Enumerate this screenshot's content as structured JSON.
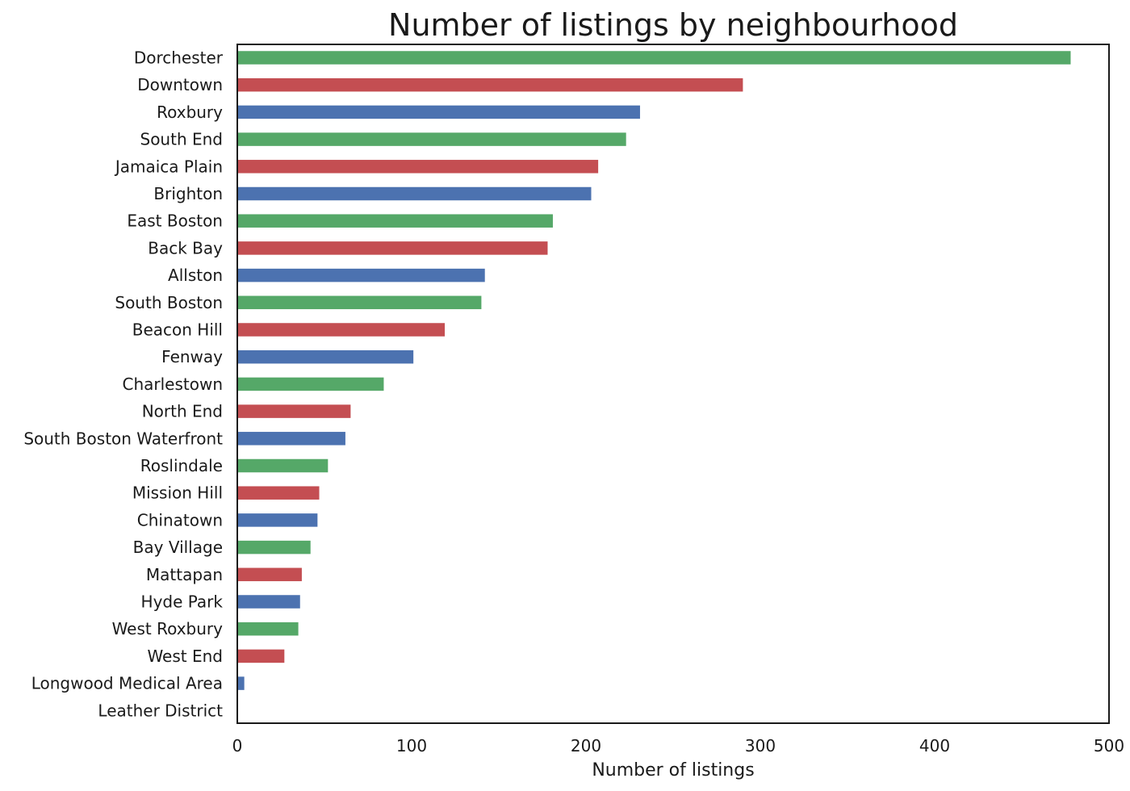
{
  "chart_data": {
    "type": "bar",
    "orientation": "horizontal",
    "title": "Number of listings by neighbourhood",
    "xlabel": "Number of listings",
    "ylabel": "",
    "xlim": [
      0,
      500
    ],
    "xticks": [
      0,
      100,
      200,
      300,
      400,
      500
    ],
    "xtick_labels": [
      "0",
      "100",
      "200",
      "300",
      "400",
      "500"
    ],
    "grid": false,
    "legend": "none",
    "bar_color_cycle": [
      "#55a868",
      "#c44e52",
      "#4c72b0"
    ],
    "categories": [
      "Dorchester",
      "Downtown",
      "Roxbury",
      "South End",
      "Jamaica Plain",
      "Brighton",
      "East Boston",
      "Back Bay",
      "Allston",
      "South Boston",
      "Beacon Hill",
      "Fenway",
      "Charlestown",
      "North End",
      "South Boston Waterfront",
      "Roslindale",
      "Mission Hill",
      "Chinatown",
      "Bay Village",
      "Mattapan",
      "Hyde Park",
      "West Roxbury",
      "West End",
      "Longwood Medical Area",
      "Leather District"
    ],
    "values": [
      478,
      290,
      231,
      223,
      207,
      203,
      181,
      178,
      142,
      140,
      119,
      101,
      84,
      65,
      62,
      52,
      47,
      46,
      42,
      37,
      36,
      35,
      27,
      4,
      0
    ]
  }
}
